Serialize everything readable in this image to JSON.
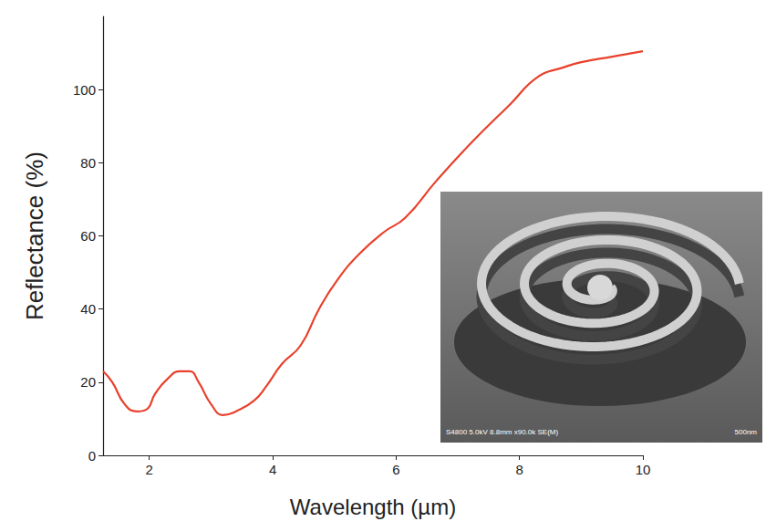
{
  "chart_data": {
    "type": "line",
    "xlabel": "Wavelength (µm)",
    "ylabel": "Reflectance (%)",
    "x": [
      1.25,
      1.4,
      1.6,
      1.8,
      1.95,
      2.1,
      2.3,
      2.5,
      2.65,
      2.8,
      3.0,
      3.2,
      3.4,
      3.7,
      3.9,
      4.15,
      4.45,
      4.75,
      5.05,
      5.4,
      5.8,
      6.15,
      6.65,
      7.25,
      7.85,
      8.3,
      8.7,
      9.0,
      9.5,
      10.0
    ],
    "values": [
      23,
      20,
      14,
      12,
      12.5,
      17,
      21,
      23,
      23,
      20,
      14,
      11,
      12,
      15,
      19,
      25,
      30,
      40,
      48,
      55,
      61,
      65,
      75,
      86,
      96,
      103.5,
      106,
      107.5,
      109,
      110.5
    ],
    "color": "#e8412c",
    "line_style": "solid",
    "marker": "none",
    "xlim": [
      1.25,
      10
    ],
    "xticks": [
      2,
      4,
      6,
      8,
      10
    ],
    "ylim": [
      0,
      120
    ],
    "yticks": [
      0,
      20,
      40,
      60,
      80,
      100
    ],
    "grid": false,
    "annotations": [
      "S4800 5.0kV 8.8mm x90.0k SE(M)",
      "500nm"
    ]
  }
}
